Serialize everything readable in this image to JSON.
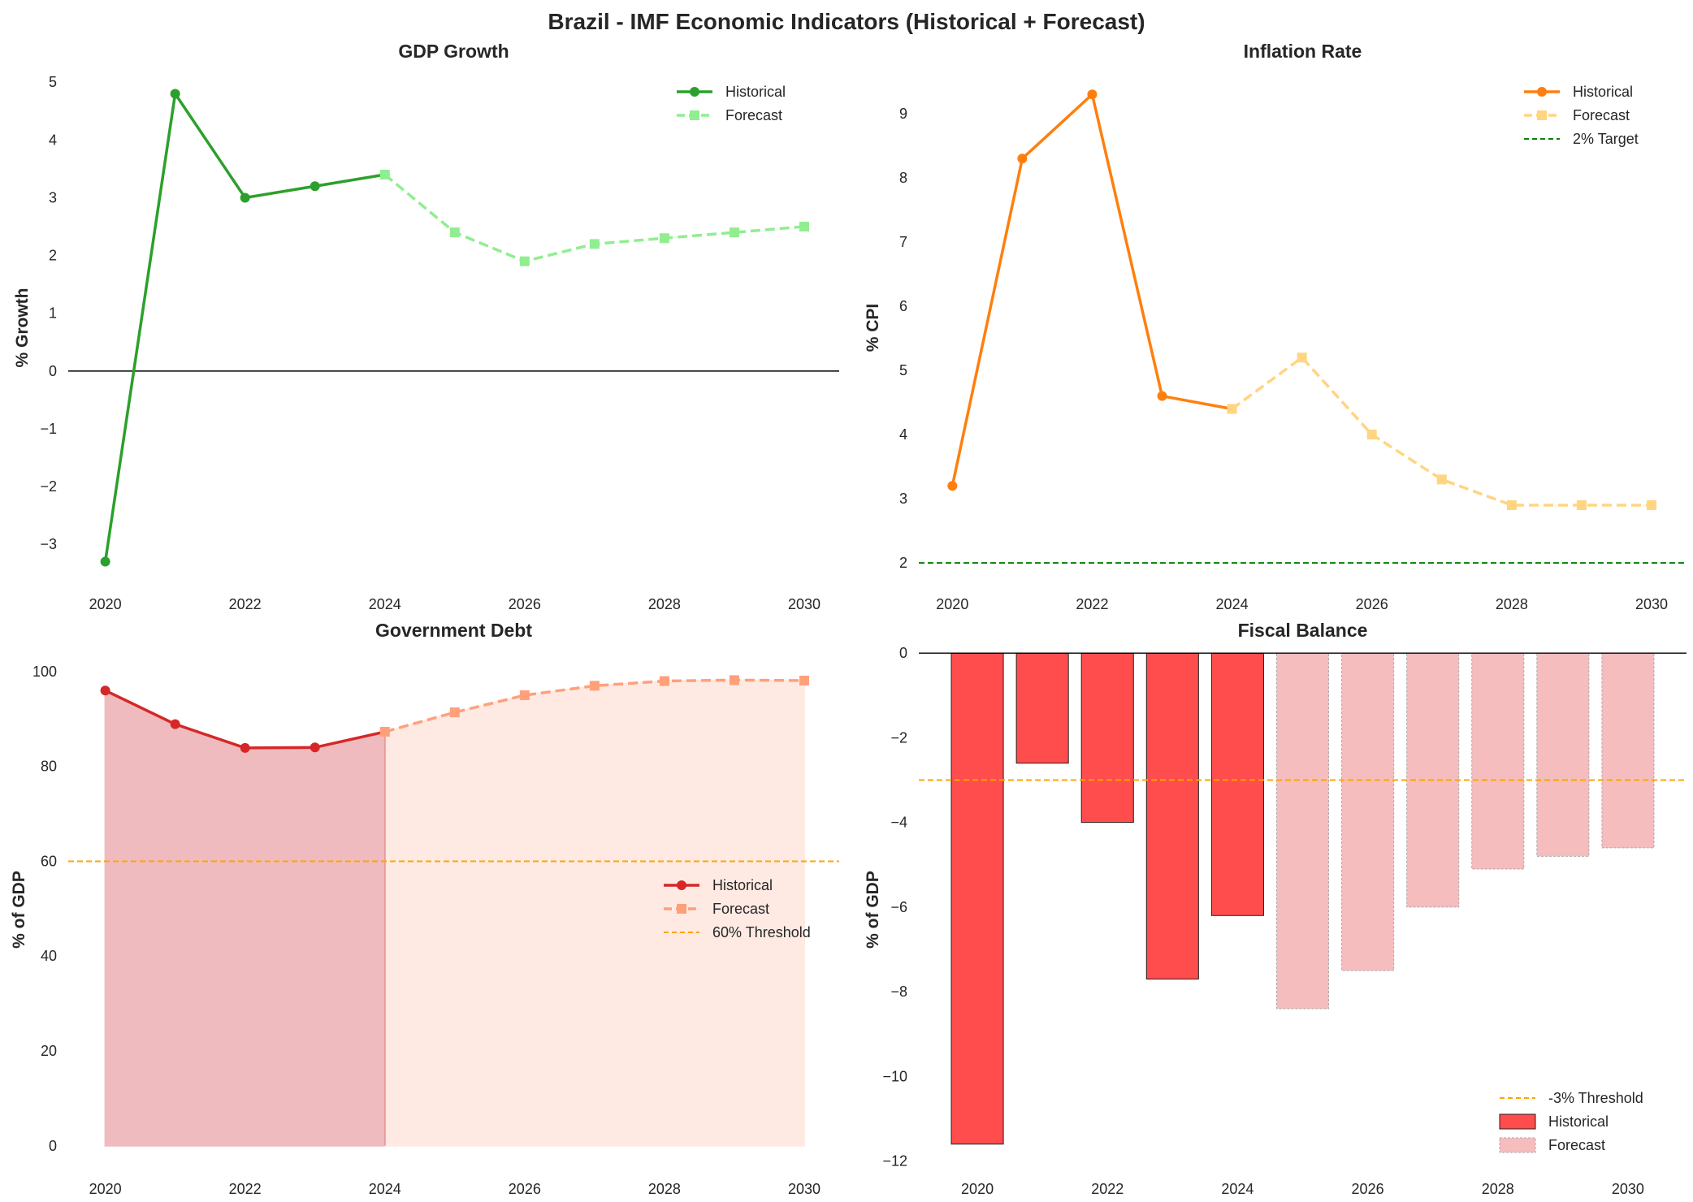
{
  "suptitle": "Brazil - IMF Economic Indicators (Historical + Forecast)",
  "chart_data": [
    {
      "type": "line",
      "title": "GDP Growth",
      "ylabel": "% Growth",
      "xlim": [
        2019.47,
        2030.5
      ],
      "ylim": [
        -3.7,
        5.2
      ],
      "xticks": [
        "2020",
        "2022",
        "2024",
        "2026",
        "2028",
        "2030"
      ],
      "yticks": [
        "−3",
        "−2",
        "−1",
        "0",
        "1",
        "2",
        "3",
        "4",
        "5"
      ],
      "grid": false,
      "legend": "top-right",
      "reference_lines": [
        {
          "y": 0,
          "color": "#000000",
          "style": "solid"
        }
      ],
      "series": [
        {
          "name": "Historical",
          "color": "#2ca02c",
          "style": "solid",
          "marker": "circle",
          "x": [
            2020,
            2021,
            2022,
            2023,
            2024
          ],
          "y": [
            -3.3,
            4.8,
            3.0,
            3.2,
            3.4
          ]
        },
        {
          "name": "Forecast",
          "color": "#90ee90",
          "style": "dashed",
          "marker": "square",
          "x": [
            2024,
            2025,
            2026,
            2027,
            2028,
            2029,
            2030
          ],
          "y": [
            3.4,
            2.4,
            1.9,
            2.2,
            2.3,
            2.4,
            2.5
          ]
        }
      ]
    },
    {
      "type": "line",
      "title": "Inflation Rate",
      "ylabel": "% CPI",
      "xlim": [
        2019.52,
        2030.5
      ],
      "ylim": [
        1.66,
        9.67
      ],
      "xticks": [
        "2020",
        "2022",
        "2024",
        "2026",
        "2028",
        "2030"
      ],
      "yticks": [
        "2",
        "3",
        "4",
        "5",
        "6",
        "7",
        "8",
        "9"
      ],
      "grid": false,
      "legend": "top-right",
      "series": [
        {
          "name": "Historical",
          "color": "#ff7f0e",
          "style": "solid",
          "marker": "circle",
          "x": [
            2020,
            2021,
            2022,
            2023,
            2024
          ],
          "y": [
            3.2,
            8.3,
            9.3,
            4.6,
            4.4
          ]
        },
        {
          "name": "Forecast",
          "color": "#ffd580",
          "style": "dashed",
          "marker": "square",
          "x": [
            2024,
            2025,
            2026,
            2027,
            2028,
            2029,
            2030
          ],
          "y": [
            4.4,
            5.2,
            4.0,
            3.3,
            2.9,
            2.9,
            2.9
          ]
        }
      ],
      "reference_lines": [
        {
          "name": "2% Target",
          "y": 2,
          "color": "#008000",
          "style": "dashed"
        }
      ]
    },
    {
      "type": "area",
      "title": "Government Debt",
      "ylabel": "% of GDP",
      "xlim": [
        2019.47,
        2030.5
      ],
      "ylim": [
        -5,
        104.6
      ],
      "xticks": [
        "2020",
        "2022",
        "2024",
        "2026",
        "2028",
        "2030"
      ],
      "yticks": [
        "0",
        "20",
        "40",
        "60",
        "80",
        "100"
      ],
      "grid": false,
      "legend": "center-right",
      "series": [
        {
          "name": "Historical",
          "color": "#d62728",
          "fill": "#efbbbe",
          "style": "solid",
          "marker": "circle",
          "x": [
            2020,
            2021,
            2022,
            2023,
            2024
          ],
          "y": [
            96.0,
            88.9,
            83.9,
            84.0,
            87.3
          ]
        },
        {
          "name": "Forecast",
          "color": "#ffa07a",
          "fill": "#feeae3",
          "style": "dashed",
          "marker": "square",
          "x": [
            2024,
            2025,
            2026,
            2027,
            2028,
            2029,
            2030
          ],
          "y": [
            87.3,
            91.4,
            95.0,
            97.0,
            98.0,
            98.2,
            98.1
          ]
        }
      ],
      "reference_lines": [
        {
          "name": "60% Threshold",
          "y": 60,
          "color": "#ffa500",
          "style": "dashed"
        }
      ]
    },
    {
      "type": "bar",
      "title": "Fiscal Balance",
      "ylabel": "% of GDP",
      "xlim": [
        2019.1,
        2030.9
      ],
      "ylim": [
        -12.2,
        0.08
      ],
      "xticks": [
        "2020",
        "2022",
        "2024",
        "2026",
        "2028",
        "2030"
      ],
      "yticks": [
        "−12",
        "−10",
        "−8",
        "−6",
        "−4",
        "−2",
        "0"
      ],
      "grid": false,
      "legend": "bottom-right",
      "reference_lines": [
        {
          "name": "-3% Threshold",
          "y": -3,
          "color": "#ffa500",
          "style": "dashed"
        },
        {
          "y": 0,
          "color": "#000000",
          "style": "solid"
        }
      ],
      "series": [
        {
          "name": "Historical",
          "color": "#ff4c4c",
          "x": [
            2020,
            2021,
            2022,
            2023,
            2024
          ],
          "y": [
            -11.6,
            -2.6,
            -4.0,
            -7.7,
            -6.2
          ]
        },
        {
          "name": "Forecast",
          "color": "#f6bdbe",
          "x": [
            2025,
            2026,
            2027,
            2028,
            2029,
            2030
          ],
          "y": [
            -8.4,
            -7.5,
            -6.0,
            -5.1,
            -4.8,
            -4.6
          ]
        }
      ]
    }
  ]
}
